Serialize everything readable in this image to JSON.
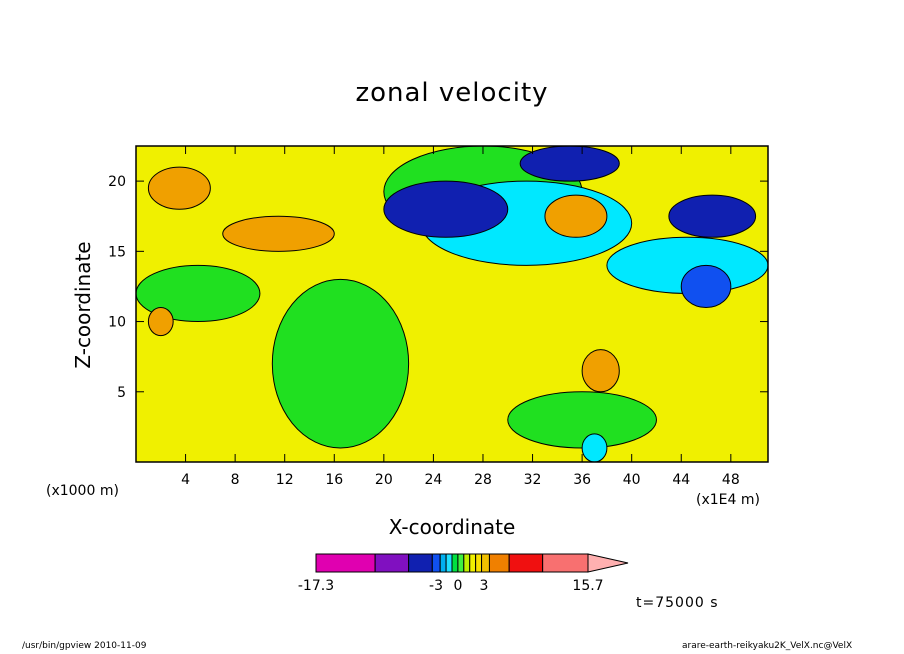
{
  "chart_data": {
    "type": "heatmap",
    "title": "zonal velocity",
    "xlabel": "X-coordinate",
    "ylabel": "Z-coordinate",
    "x_unit_left": "(x1000 m)",
    "x_unit_right": "(x1E4 m)",
    "x_ticks": [
      "4",
      "8",
      "12",
      "16",
      "20",
      "24",
      "28",
      "32",
      "36",
      "40",
      "44",
      "48"
    ],
    "y_ticks": [
      "5",
      "10",
      "15",
      "20"
    ],
    "xlim": [
      0,
      51
    ],
    "ylim": [
      0,
      22.5
    ],
    "colorbar": {
      "labels": [
        "-17.3",
        "-3",
        "0",
        "3",
        "15.7"
      ],
      "colors": [
        "#e000b0",
        "#8010c0",
        "#1020b0",
        "#1050f0",
        "#00b0f0",
        "#20e0ff",
        "#00e040",
        "#40f040",
        "#c0f000",
        "#f0f000",
        "#f8e000",
        "#f0c000",
        "#f08000",
        "#f01010",
        "#f87070",
        "#ffb0b0"
      ]
    },
    "regions": [
      {
        "level": "yellow",
        "x": [
          0,
          51
        ],
        "z": [
          0,
          22.5
        ]
      },
      {
        "level": "green",
        "x": [
          0,
          10
        ],
        "z": [
          10,
          14
        ]
      },
      {
        "level": "green",
        "x": [
          11,
          22
        ],
        "z": [
          1,
          13
        ]
      },
      {
        "level": "green",
        "x": [
          30,
          42
        ],
        "z": [
          1,
          5
        ]
      },
      {
        "level": "green",
        "x": [
          20,
          36
        ],
        "z": [
          16,
          22.5
        ]
      },
      {
        "level": "cyan",
        "x": [
          23,
          40
        ],
        "z": [
          14,
          20
        ]
      },
      {
        "level": "cyan",
        "x": [
          38,
          51
        ],
        "z": [
          12,
          16
        ]
      },
      {
        "level": "cyan",
        "x": [
          36,
          38
        ],
        "z": [
          0,
          2
        ]
      },
      {
        "level": "navy",
        "x": [
          20,
          30
        ],
        "z": [
          16,
          20
        ]
      },
      {
        "level": "navy",
        "x": [
          31,
          39
        ],
        "z": [
          20,
          22.5
        ]
      },
      {
        "level": "navy",
        "x": [
          43,
          50
        ],
        "z": [
          16,
          19
        ]
      },
      {
        "level": "blue",
        "x": [
          44,
          48
        ],
        "z": [
          11,
          14
        ]
      },
      {
        "level": "orange",
        "x": [
          7,
          16
        ],
        "z": [
          15,
          17.5
        ]
      },
      {
        "level": "orange",
        "x": [
          1,
          6
        ],
        "z": [
          18,
          21
        ]
      },
      {
        "level": "orange",
        "x": [
          33,
          38
        ],
        "z": [
          16,
          19
        ]
      },
      {
        "level": "orange",
        "x": [
          36,
          39
        ],
        "z": [
          5,
          8
        ]
      },
      {
        "level": "orange",
        "x": [
          1,
          3
        ],
        "z": [
          9,
          11
        ]
      }
    ],
    "time": "t=75000 s",
    "footer_left": "/usr/bin/gpview 2010-11-09",
    "footer_right": "arare-earth-reikyaku2K_VelX.nc@VelX"
  }
}
